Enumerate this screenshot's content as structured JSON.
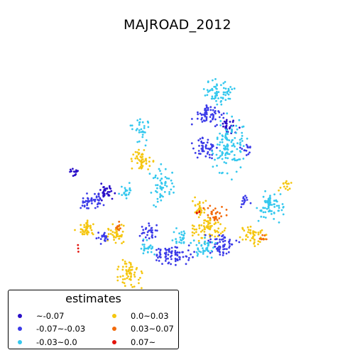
{
  "map": {
    "title": "MAJROAD_2012"
  },
  "legend": {
    "title": "estimates",
    "items": [
      {
        "label": "~-0.07",
        "color": "#2a0fc8"
      },
      {
        "label": "-0.07~-0.03",
        "color": "#3b3ae8"
      },
      {
        "label": "-0.03~0.0",
        "color": "#35c8ee"
      },
      {
        "label": "0.0~0.03",
        "color": "#f5c60f"
      },
      {
        "label": "0.03~0.07",
        "color": "#f26a0b"
      },
      {
        "label": "0.07~",
        "color": "#e3120b"
      }
    ]
  }
}
